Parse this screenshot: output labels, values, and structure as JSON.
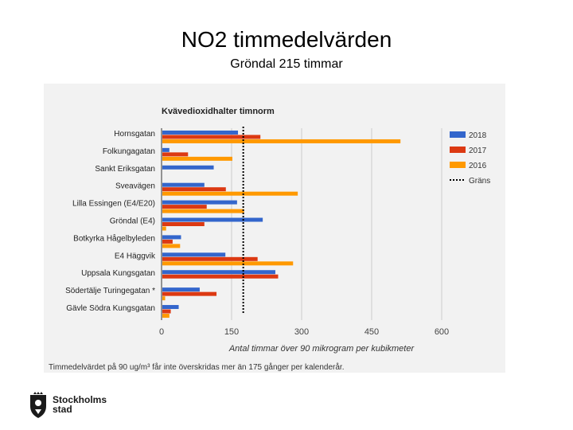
{
  "slide": {
    "title": "NO2 timmedelvärden",
    "subtitle": "Gröndal 215 timmar"
  },
  "logo": {
    "name_line1": "Stockholms",
    "name_line2": "stad"
  },
  "chart_data": {
    "type": "bar",
    "orientation": "horizontal",
    "title": "Kvävedioxidhalter timnorm",
    "xlabel": "Antal timmar över 90 mikrogram per kubikmeter",
    "ylabel": "",
    "xlim": [
      0,
      600
    ],
    "xticks": [
      0,
      150,
      300,
      450,
      600
    ],
    "grid": true,
    "legend_position": "right",
    "categories": [
      "Hornsgatan",
      "Folkungagatan",
      "Sankt Eriksgatan",
      "Sveavägen",
      "Lilla Essingen (E4/E20)",
      "Gröndal (E4)",
      "Botkyrka Hågelbyleden",
      "E4 Häggvik",
      "Uppsala Kungsgatan",
      "Södertälje Turingegatan *",
      "Gävle Södra Kungsgatan"
    ],
    "series": [
      {
        "name": "2018",
        "color": "#3366cc",
        "values": [
          162,
          15,
          110,
          90,
          160,
          215,
          40,
          135,
          242,
          80,
          35
        ]
      },
      {
        "name": "2017",
        "color": "#dc3912",
        "values": [
          210,
          55,
          0,
          136,
          95,
          90,
          22,
          204,
          248,
          116,
          18
        ]
      },
      {
        "name": "2016",
        "color": "#ff9900",
        "values": [
          510,
          150,
          0,
          290,
          175,
          8,
          38,
          280,
          0,
          6,
          15
        ]
      }
    ],
    "threshold": {
      "name": "Gräns",
      "value": 175
    },
    "footnote": "Timmedelvärdet på 90 ug/m³ får inte överskridas mer än 175 gånger per kalenderår."
  }
}
